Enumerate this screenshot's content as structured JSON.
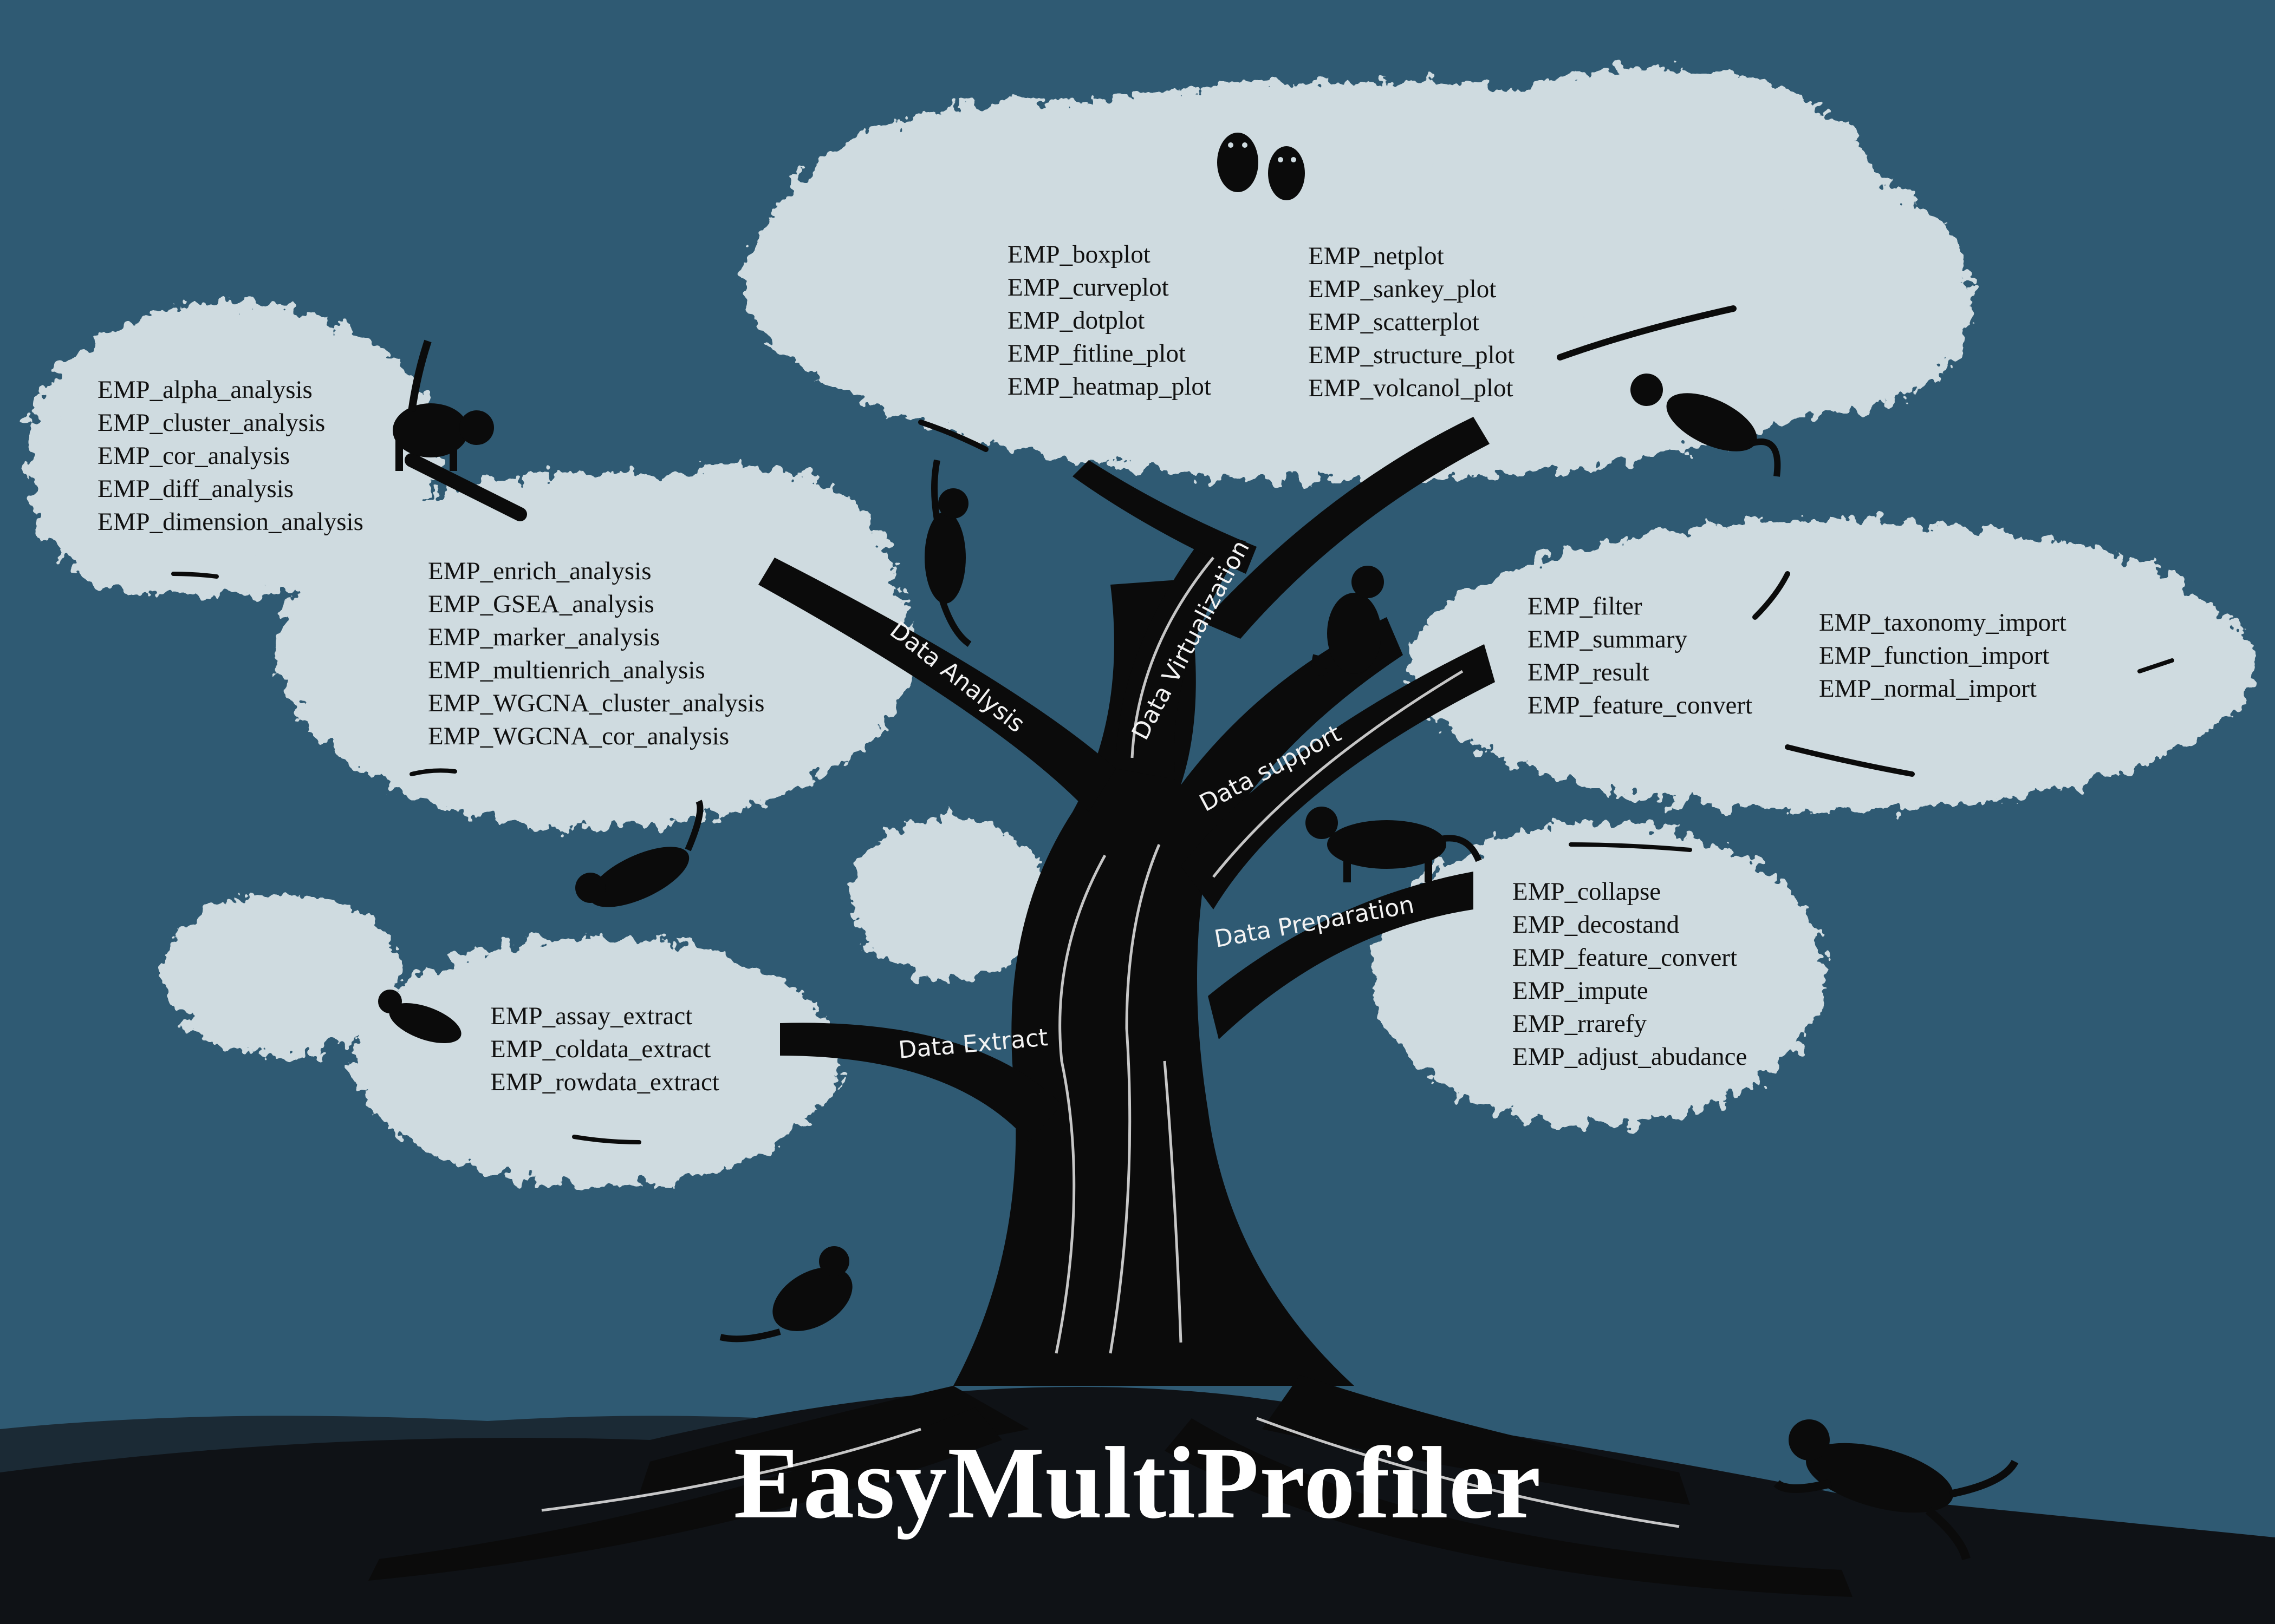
{
  "title": "EasyMultiProfiler",
  "branches": {
    "analysis": "Data Analysis",
    "virtualization": "Data Virtualization",
    "support": "Data support",
    "preparation": "Data Preparation",
    "extract": "Data Extract"
  },
  "groups": {
    "analysis_basic": [
      "EMP_alpha_analysis",
      "EMP_cluster_analysis",
      "EMP_cor_analysis",
      "EMP_diff_analysis",
      "EMP_dimension_analysis"
    ],
    "analysis_advanced": [
      "EMP_enrich_analysis",
      "EMP_GSEA_analysis",
      "EMP_marker_analysis",
      "EMP_multienrich_analysis",
      "EMP_WGCNA_cluster_analysis",
      "EMP_WGCNA_cor_analysis"
    ],
    "plots_left": [
      "EMP_boxplot",
      "EMP_curveplot",
      "EMP_dotplot",
      "EMP_fitline_plot",
      "EMP_heatmap_plot"
    ],
    "plots_right": [
      "EMP_netplot",
      "EMP_sankey_plot",
      "EMP_scatterplot",
      "EMP_structure_plot",
      "EMP_volcanol_plot"
    ],
    "support": [
      "EMP_filter",
      "EMP_summary",
      "EMP_result",
      "EMP_feature_convert"
    ],
    "import": [
      "EMP_taxonomy_import",
      "EMP_function_import",
      "EMP_normal_import"
    ],
    "preparation": [
      "EMP_collapse",
      "EMP_decostand",
      "EMP_feature_convert",
      "EMP_impute",
      "EMP_rrarefy",
      "EMP_adjust_abudance"
    ],
    "extract": [
      "EMP_assay_extract",
      "EMP_coldata_extract",
      "EMP_rowdata_extract"
    ]
  },
  "colors": {
    "sky": "#2f5a73",
    "foliage": "#cfdbe0",
    "foliage_edge": "#e6eef1",
    "tree": "#0b0b0b",
    "ground": "#0f1216",
    "branch_text": "#f2f2f2"
  }
}
